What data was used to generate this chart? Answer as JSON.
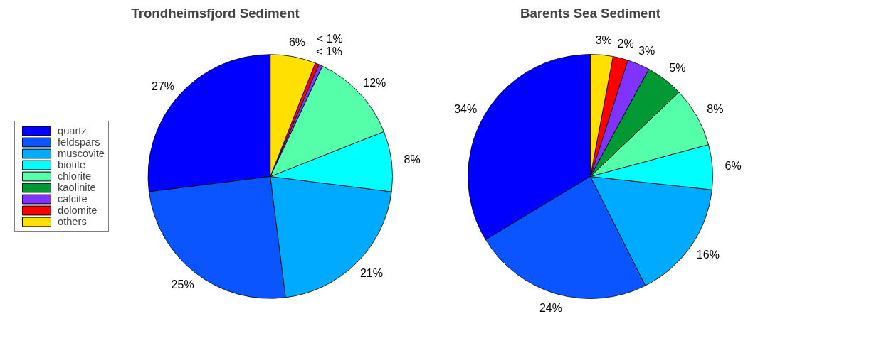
{
  "chart_data": [
    {
      "type": "pie",
      "title": "Trondheimsfjord Sediment",
      "categories": [
        "quartz",
        "feldspars",
        "muscovite",
        "biotite",
        "chlorite",
        "kaolinite",
        "calcite",
        "dolomite",
        "others"
      ],
      "values": [
        27,
        25,
        21,
        8,
        12,
        null,
        0.5,
        0.5,
        6
      ],
      "value_labels": [
        "27%",
        "25%",
        "21%",
        "8%",
        "12%",
        null,
        "< 1%",
        "< 1%",
        "6%"
      ],
      "colors": [
        "#0000ff",
        "#0a55ff",
        "#00aaff",
        "#00ffff",
        "#55ffaa",
        "#009933",
        "#8033ff",
        "#ff0000",
        "#ffe000"
      ],
      "legend": "left"
    },
    {
      "type": "pie",
      "title": "Barents Sea Sediment",
      "categories": [
        null,
        null,
        null,
        null,
        null,
        null,
        null,
        null,
        null
      ],
      "values": [
        34,
        24,
        16,
        6,
        8,
        5,
        3,
        2,
        3
      ],
      "value_labels": [
        "34%",
        "24%",
        "16%",
        "6%",
        "8%",
        "5%",
        "3%",
        "2%",
        "3%"
      ],
      "colors": [
        "#0000ff",
        "#0a55ff",
        "#00aaff",
        "#00ffff",
        "#55ffaa",
        "#009933",
        "#8033ff",
        "#ff0000",
        "#ffe000"
      ]
    }
  ]
}
